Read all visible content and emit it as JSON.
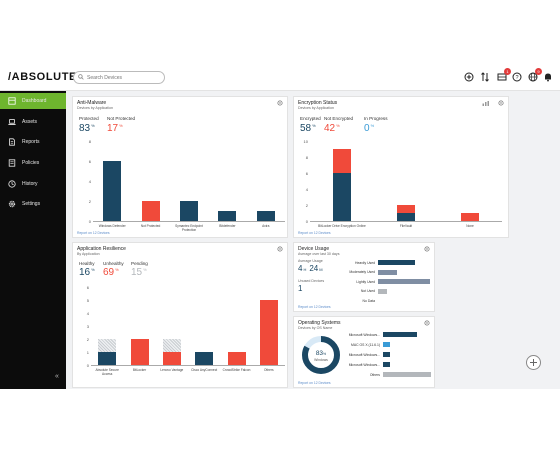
{
  "brand": "/ABSOLUTE",
  "search": {
    "placeholder": "Search Devices"
  },
  "topbar": {
    "badge_a": "1",
    "badge_b": "9"
  },
  "sidebar": {
    "items": [
      {
        "label": "Dashboard"
      },
      {
        "label": "Assets"
      },
      {
        "label": "Reports"
      },
      {
        "label": "Policies"
      },
      {
        "label": "History"
      },
      {
        "label": "Settings"
      }
    ],
    "collapse": "«"
  },
  "anti_malware": {
    "title": "Anti-Malware",
    "subtitle": "Devices by Application",
    "protected_label": "Protected",
    "protected_value": "83",
    "not_protected_label": "Not Protected",
    "not_protected_value": "17",
    "pct": "%",
    "report": "Report on 12 Devices",
    "chart_data": {
      "type": "bar",
      "categories": [
        "Windows Defender",
        "Not Protected",
        "Symantec Endpoint Protection",
        "Bitdefender",
        "Avira"
      ],
      "values": [
        6,
        2,
        2,
        1,
        1
      ],
      "ylim": [
        0,
        8
      ],
      "yticks": [
        "0",
        "2",
        "4",
        "6",
        "8"
      ]
    }
  },
  "encryption": {
    "title": "Encryption Status",
    "subtitle": "Devices by Application",
    "encrypted_label": "Encrypted",
    "encrypted_value": "58",
    "not_encrypted_label": "Not Encrypted",
    "not_encrypted_value": "42",
    "in_progress_label": "In Progress",
    "in_progress_value": "0",
    "pct": "%",
    "report": "Report on 12 Devices",
    "chart_data": {
      "type": "bar",
      "categories": [
        "BitLocker Drive Encryption Online",
        "FileVault",
        "None"
      ],
      "series": [
        {
          "name": "Encrypted",
          "values": [
            6,
            1,
            0
          ]
        },
        {
          "name": "Not Encrypted",
          "values": [
            3,
            1,
            1
          ]
        }
      ],
      "ylim": [
        0,
        10
      ],
      "yticks": [
        "0",
        "2",
        "4",
        "6",
        "8",
        "10"
      ]
    }
  },
  "resilience": {
    "title": "Application Resilience",
    "subtitle": "By Application",
    "healthy_label": "Healthy",
    "healthy_value": "16",
    "unhealthy_label": "Unhealthy",
    "unhealthy_value": "69",
    "pending_label": "Pending",
    "pending_value": "15",
    "pct": "%",
    "chart_data": {
      "type": "bar",
      "categories": [
        "Absolute Secure Access",
        "BitLocker",
        "Lenovo Vantage",
        "Cisco AnyConnect",
        "CrowdStrike Falcon",
        "Others"
      ],
      "series": [
        {
          "name": "Healthy",
          "values": [
            1,
            0,
            0,
            1,
            0,
            0
          ]
        },
        {
          "name": "Unhealthy",
          "values": [
            0,
            2,
            1,
            0,
            1,
            5
          ]
        },
        {
          "name": "Pending",
          "values": [
            1,
            0,
            1,
            0,
            0,
            0
          ]
        }
      ],
      "ylim": [
        0,
        6
      ],
      "yticks": [
        "0",
        "1",
        "2",
        "3",
        "4",
        "5",
        "6"
      ]
    }
  },
  "device_usage": {
    "title": "Device Usage",
    "subtitle": "Average over last 30 days",
    "avg_label": "Average Usage",
    "avg_h": "4",
    "h_unit": "H",
    "avg_m": "24",
    "m_unit": "M",
    "unused_label": "Unused Devices",
    "unused_value": "1",
    "report": "Report on 12 Devices",
    "chart_data": {
      "type": "bar",
      "categories": [
        "Heavily Used",
        "Moderately Used",
        "Lightly Used",
        "Not Used",
        "No Data"
      ],
      "values": [
        5,
        2.5,
        7,
        1.2,
        0
      ],
      "xlim": [
        0,
        7
      ]
    }
  },
  "os": {
    "title": "Operating Systems",
    "subtitle": "Devices by OS Name",
    "donut_value": "83",
    "donut_pct": "%",
    "donut_label": "Windows",
    "report": "Report on 12 Devices",
    "chart_data": {
      "type": "bar",
      "categories": [
        "Microsoft Windows...",
        "MAC OS X (11.6.1)",
        "Microsoft Windows...",
        "Microsoft Windows...",
        "Others"
      ],
      "values": [
        5,
        1,
        1,
        1,
        7
      ],
      "xlim": [
        0,
        7
      ],
      "donut_fraction": 0.83
    }
  },
  "colors": {
    "navy": "#1b4763",
    "red": "#f04a3a",
    "blue": "#3a9bd6",
    "slate": "#7f8ea3",
    "grey": "#b3b7bb",
    "green": "#6eb52e"
  }
}
